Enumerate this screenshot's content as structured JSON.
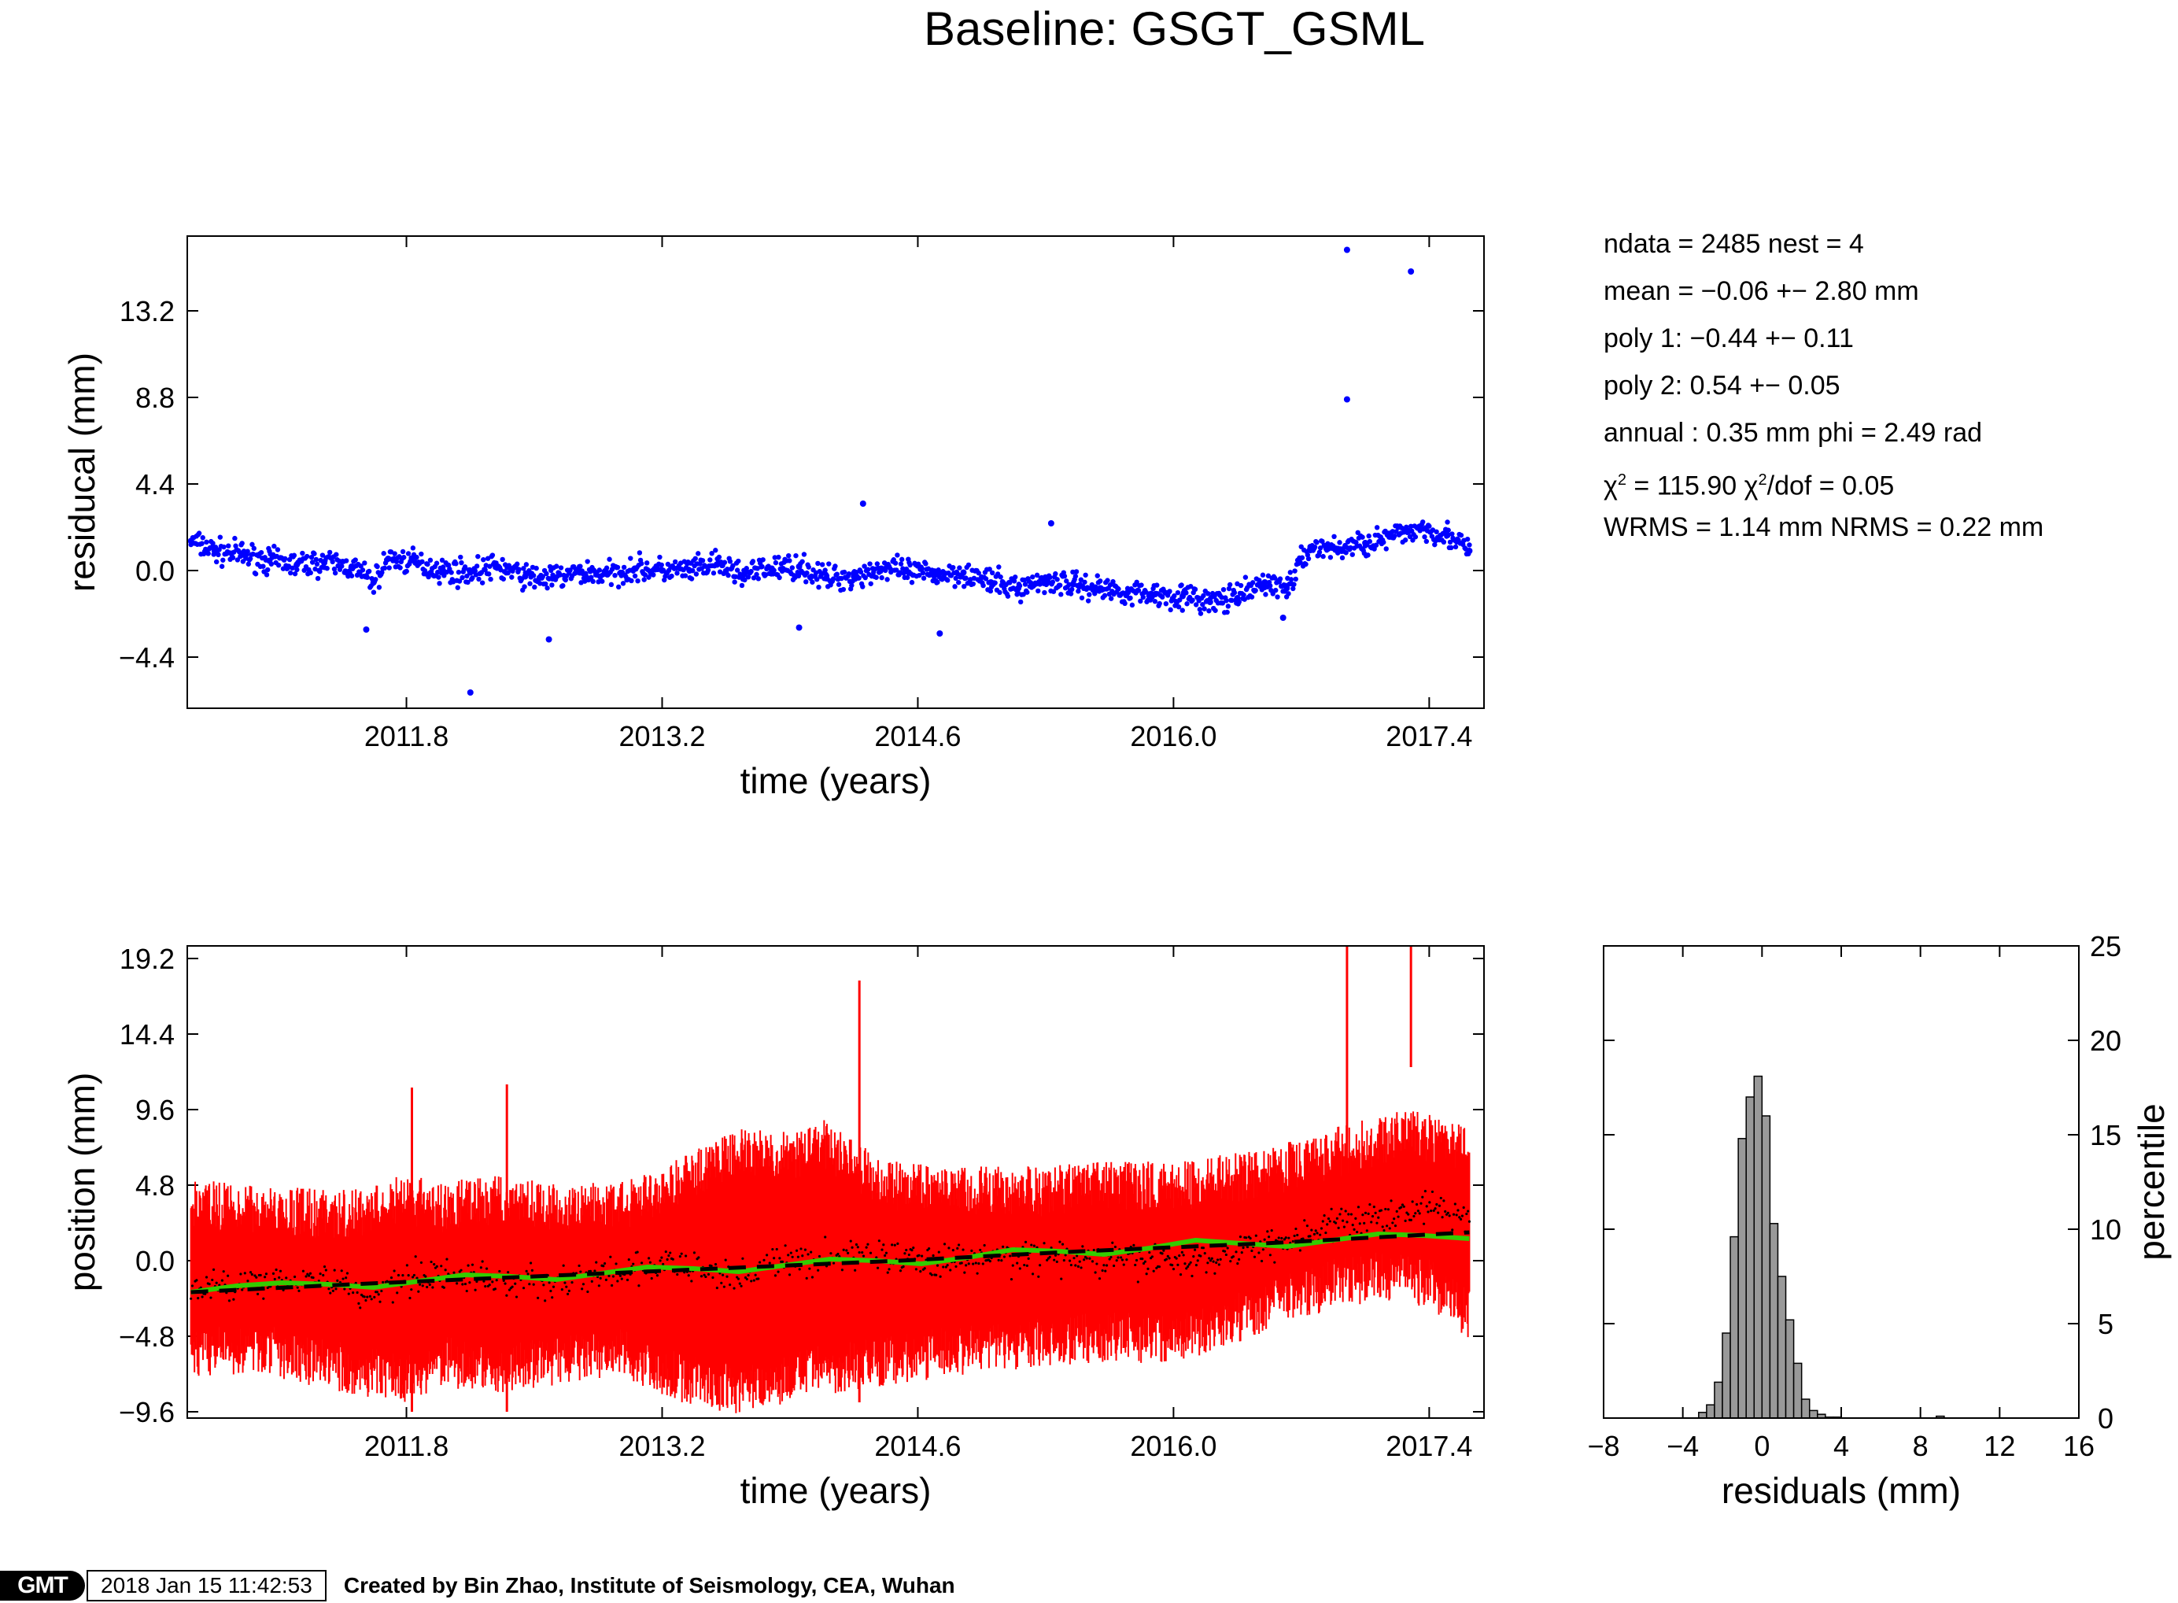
{
  "title": "Baseline: GSGT_GSML",
  "stats": {
    "ndata": "ndata = 2485  nest = 4",
    "mean": "mean = −0.06 +− 2.80 mm",
    "poly1": "poly 1: −0.44 +− 0.11",
    "poly2": "poly 2: 0.54 +− 0.05",
    "annual": "annual : 0.35 mm  phi = 2.49 rad",
    "chi_sym1": "χ",
    "chi_exp1": "2",
    "chi_val1": " = 115.90  ",
    "chi_sym2": "χ",
    "chi_exp2": "2",
    "chi_val2": "/dof = 0.05",
    "rms": "WRMS = 1.14 mm  NRMS = 0.22 mm"
  },
  "footer": {
    "logo": "GMT",
    "timestamp": "2018 Jan 15 11:42:53",
    "credit": "Created by Bin Zhao, Institute of Seismology, CEA, Wuhan"
  },
  "colors": {
    "residual_points": "#0000ff",
    "error_bars": "#ff0000",
    "model_line": "#33cc00",
    "trend_line": "#000000",
    "histogram_fill": "#999999"
  },
  "chart_data": [
    {
      "type": "scatter",
      "name": "residual-panel",
      "xlabel": "time (years)",
      "ylabel": "residucal (mm)",
      "xlim": [
        2010.6,
        2017.7
      ],
      "ylim": [
        -7.0,
        17.0
      ],
      "xticks": [
        "2011.8",
        "2013.2",
        "2014.6",
        "2016.0",
        "2017.4"
      ],
      "yticks": [
        "−4.4",
        "0.0",
        "4.4",
        "8.8",
        "13.2"
      ],
      "series": [
        {
          "marker": "dot",
          "color": "#0000ff",
          "x": [
            2010.62,
            2010.75,
            2010.9,
            2011.05,
            2011.2,
            2011.35,
            2011.5,
            2011.62,
            2011.7,
            2011.85,
            2012.0,
            2012.15,
            2012.3,
            2012.45,
            2012.6,
            2012.75,
            2012.9,
            2013.05,
            2013.2,
            2013.35,
            2013.5,
            2013.65,
            2013.8,
            2013.95,
            2014.1,
            2014.25,
            2014.4,
            2014.55,
            2014.7,
            2014.85,
            2015.0,
            2015.15,
            2015.3,
            2015.45,
            2015.6,
            2015.75,
            2015.9,
            2016.05,
            2016.2,
            2016.35,
            2016.5,
            2016.62,
            2016.75,
            2016.9,
            2017.05,
            2017.2,
            2017.35,
            2017.5,
            2017.62
          ],
          "y": [
            1.5,
            1.0,
            0.8,
            0.5,
            0.3,
            0.4,
            0.2,
            -0.6,
            0.6,
            0.4,
            0.0,
            -0.1,
            0.2,
            -0.3,
            -0.4,
            -0.1,
            -0.2,
            0.1,
            0.0,
            0.0,
            0.3,
            -0.2,
            0.1,
            0.2,
            -0.4,
            -0.3,
            0.1,
            -0.1,
            -0.2,
            -0.1,
            -0.6,
            -0.9,
            -0.5,
            -0.7,
            -0.9,
            -1.1,
            -1.2,
            -1.3,
            -1.6,
            -1.4,
            -0.6,
            -0.9,
            1.2,
            1.1,
            1.4,
            1.7,
            2.2,
            1.8,
            1.0
          ]
        },
        {
          "marker": "dot",
          "color": "#0000ff",
          "name": "outliers",
          "x": [
            2012.15,
            2016.95,
            2016.95,
            2017.3,
            2014.3,
            2015.33,
            2011.58,
            2012.58,
            2013.95,
            2014.72,
            2016.6
          ],
          "y": [
            -6.2,
            16.3,
            8.7,
            15.2,
            3.4,
            2.4,
            -3.0,
            -3.5,
            -2.9,
            -3.2,
            -2.4
          ]
        }
      ]
    },
    {
      "type": "line",
      "name": "position-panel",
      "xlabel": "time (years)",
      "ylabel": "position (mm)",
      "xlim": [
        2010.6,
        2017.7
      ],
      "ylim": [
        -10.0,
        20.0
      ],
      "xticks": [
        "2011.8",
        "2013.2",
        "2014.6",
        "2016.0",
        "2017.4"
      ],
      "yticks": [
        "−9.6",
        "−4.8",
        "0.0",
        "4.8",
        "9.6",
        "14.4",
        "19.2"
      ],
      "error_envelope": {
        "color": "#ff0000",
        "x": [
          2010.62,
          2011.0,
          2011.5,
          2011.8,
          2012.0,
          2012.3,
          2012.6,
          2013.0,
          2013.3,
          2013.6,
          2013.9,
          2014.1,
          2014.4,
          2014.7,
          2015.0,
          2015.3,
          2015.6,
          2016.0,
          2016.3,
          2016.6,
          2016.9,
          2017.2,
          2017.4,
          2017.62
        ],
        "upper": [
          5.2,
          4.8,
          4.5,
          5.5,
          5.0,
          5.5,
          5.0,
          5.2,
          6.5,
          8.5,
          8.2,
          9.0,
          6.5,
          6.0,
          6.0,
          6.0,
          6.5,
          6.2,
          6.8,
          7.5,
          8.5,
          9.5,
          9.5,
          8.5
        ],
        "lower": [
          -7.5,
          -7.2,
          -8.5,
          -9.0,
          -8.0,
          -8.5,
          -8.0,
          -7.5,
          -9.0,
          -9.8,
          -9.0,
          -8.5,
          -8.0,
          -7.5,
          -7.0,
          -6.8,
          -6.5,
          -6.5,
          -5.5,
          -4.0,
          -3.0,
          -2.5,
          -3.0,
          -5.0
        ],
        "spikes": [
          {
            "x": 2011.83,
            "top": 11.0,
            "bottom": -9.6
          },
          {
            "x": 2012.35,
            "top": 11.2,
            "bottom": -9.6
          },
          {
            "x": 2014.28,
            "top": 17.8,
            "bottom": -9.0
          },
          {
            "x": 2016.95,
            "top": 20.0,
            "bottom": 2.5
          },
          {
            "x": 2017.3,
            "top": 20.0,
            "bottom": 12.3
          }
        ]
      },
      "series": [
        {
          "role": "observations",
          "color": "#000000",
          "x": [
            2010.62,
            2010.8,
            2011.0,
            2011.2,
            2011.4,
            2011.6,
            2011.8,
            2012.0,
            2012.2,
            2012.4,
            2012.6,
            2012.8,
            2013.0,
            2013.2,
            2013.4,
            2013.6,
            2013.8,
            2014.0,
            2014.2,
            2014.4,
            2014.6,
            2014.8,
            2015.0,
            2015.2,
            2015.4,
            2015.6,
            2015.8,
            2016.0,
            2016.2,
            2016.4,
            2016.6,
            2016.8,
            2017.0,
            2017.2,
            2017.4,
            2017.62
          ],
          "y": [
            -2.0,
            -1.5,
            -1.3,
            -1.0,
            -1.3,
            -2.2,
            -1.0,
            -0.8,
            -1.2,
            -1.3,
            -1.4,
            -1.0,
            -0.8,
            -0.2,
            -0.6,
            -1.0,
            -0.2,
            0.0,
            0.3,
            0.4,
            0.0,
            0.0,
            0.2,
            0.3,
            0.2,
            0.0,
            0.0,
            0.0,
            0.0,
            1.0,
            1.2,
            2.0,
            2.5,
            3.0,
            3.5,
            2.5
          ]
        },
        {
          "role": "model",
          "color": "#33cc00",
          "x": [
            2010.62,
            2010.87,
            2011.12,
            2011.37,
            2011.62,
            2011.87,
            2012.12,
            2012.37,
            2012.62,
            2012.87,
            2013.12,
            2013.37,
            2013.62,
            2013.87,
            2014.12,
            2014.37,
            2014.62,
            2014.87,
            2015.12,
            2015.37,
            2015.62,
            2015.87,
            2016.12,
            2016.37,
            2016.62,
            2016.87,
            2017.12,
            2017.37,
            2017.62
          ],
          "y": [
            -2.0,
            -1.6,
            -1.4,
            -1.5,
            -1.7,
            -1.3,
            -0.9,
            -1.0,
            -1.2,
            -0.8,
            -0.4,
            -0.5,
            -0.7,
            -0.3,
            0.1,
            0.0,
            -0.2,
            0.2,
            0.7,
            0.6,
            0.4,
            0.8,
            1.3,
            1.1,
            0.9,
            1.3,
            1.7,
            1.6,
            1.4
          ]
        },
        {
          "role": "trend",
          "color": "#000000",
          "style": "dashed",
          "x": [
            2010.62,
            2011.5,
            2012.5,
            2013.5,
            2014.5,
            2015.5,
            2016.5,
            2017.62
          ],
          "y": [
            -2.0,
            -1.5,
            -1.0,
            -0.5,
            0.0,
            0.6,
            1.1,
            1.8
          ]
        }
      ]
    },
    {
      "type": "bar",
      "name": "histogram-panel",
      "xlabel": "residuals (mm)",
      "ylabel": "percentile",
      "xlim": [
        -8,
        16
      ],
      "ylim": [
        0,
        25
      ],
      "xticks": [
        "−8",
        "−4",
        "0",
        "4",
        "8",
        "12",
        "16"
      ],
      "yticks": [
        "0",
        "5",
        "10",
        "15",
        "20",
        "25"
      ],
      "bin_width": 0.4,
      "bin_left_edges": [
        -3.2,
        -2.8,
        -2.4,
        -2.0,
        -1.6,
        -1.2,
        -0.8,
        -0.4,
        0.0,
        0.4,
        0.8,
        1.2,
        1.6,
        2.0,
        2.4,
        2.8,
        3.2,
        3.6,
        8.8
      ],
      "values": [
        0.3,
        0.7,
        1.9,
        4.5,
        9.6,
        14.8,
        17.0,
        18.1,
        16.0,
        10.3,
        7.5,
        5.2,
        2.9,
        1.0,
        0.4,
        0.2,
        0.05,
        0.05,
        0.1
      ]
    }
  ]
}
